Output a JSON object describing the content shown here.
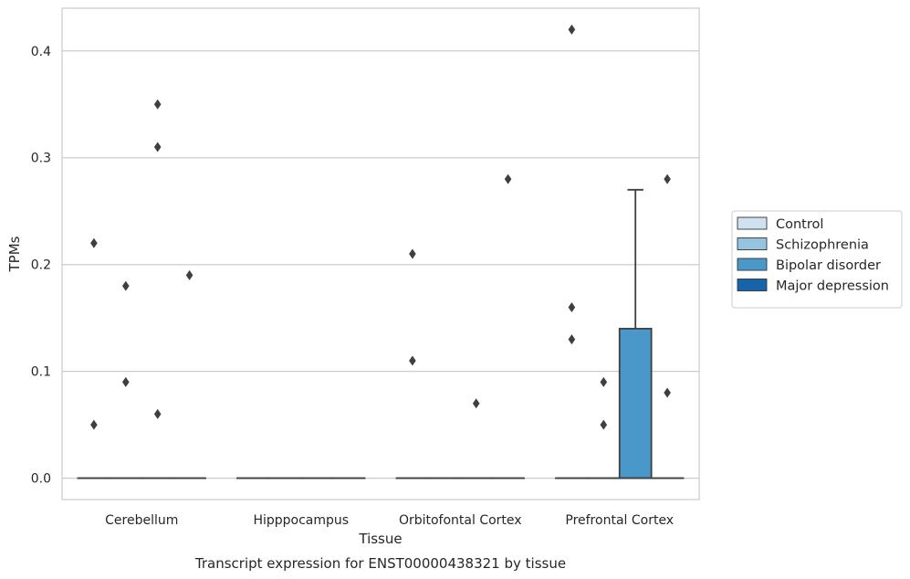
{
  "chart_data": {
    "type": "box",
    "title": "",
    "caption": "Transcript expression for ENST00000438321 by tissue",
    "xlabel": "Tissue",
    "ylabel": "TPMs",
    "ylim": [
      -0.02,
      0.44
    ],
    "yticks": [
      0.0,
      0.1,
      0.2,
      0.3,
      0.4
    ],
    "ytick_labels": [
      "0.0",
      "0.1",
      "0.2",
      "0.3",
      "0.4"
    ],
    "grid": true,
    "legend_position": "right",
    "categories": [
      "Cerebellum",
      "Hipppocampus",
      "Orbitofontal Cortex",
      "Prefrontal Cortex"
    ],
    "series": [
      {
        "name": "Control",
        "color": "#d0e1f2",
        "boxes": [
          {
            "category": "Cerebellum",
            "q1": 0.0,
            "median": 0.0,
            "q3": 0.0,
            "whisker_low": 0.0,
            "whisker_high": 0.0,
            "outliers": [
              0.05,
              0.22
            ]
          },
          {
            "category": "Hipppocampus",
            "q1": 0.0,
            "median": 0.0,
            "q3": 0.0,
            "whisker_low": 0.0,
            "whisker_high": 0.0,
            "outliers": []
          },
          {
            "category": "Orbitofontal Cortex",
            "q1": 0.0,
            "median": 0.0,
            "q3": 0.0,
            "whisker_low": 0.0,
            "whisker_high": 0.0,
            "outliers": [
              0.21,
              0.11
            ]
          },
          {
            "category": "Prefrontal Cortex",
            "q1": 0.0,
            "median": 0.0,
            "q3": 0.0,
            "whisker_low": 0.0,
            "whisker_high": 0.0,
            "outliers": [
              0.42,
              0.16,
              0.13
            ]
          }
        ]
      },
      {
        "name": "Schizophrenia",
        "color": "#94c4df",
        "boxes": [
          {
            "category": "Cerebellum",
            "q1": 0.0,
            "median": 0.0,
            "q3": 0.0,
            "whisker_low": 0.0,
            "whisker_high": 0.0,
            "outliers": [
              0.18,
              0.09
            ]
          },
          {
            "category": "Hipppocampus",
            "q1": 0.0,
            "median": 0.0,
            "q3": 0.0,
            "whisker_low": 0.0,
            "whisker_high": 0.0,
            "outliers": []
          },
          {
            "category": "Orbitofontal Cortex",
            "q1": 0.0,
            "median": 0.0,
            "q3": 0.0,
            "whisker_low": 0.0,
            "whisker_high": 0.0,
            "outliers": []
          },
          {
            "category": "Prefrontal Cortex",
            "q1": 0.0,
            "median": 0.0,
            "q3": 0.0,
            "whisker_low": 0.0,
            "whisker_high": 0.0,
            "outliers": [
              0.09,
              0.05
            ]
          }
        ]
      },
      {
        "name": "Bipolar disorder",
        "color": "#4a98c9",
        "boxes": [
          {
            "category": "Cerebellum",
            "q1": 0.0,
            "median": 0.0,
            "q3": 0.0,
            "whisker_low": 0.0,
            "whisker_high": 0.0,
            "outliers": [
              0.35,
              0.31,
              0.06
            ]
          },
          {
            "category": "Hipppocampus",
            "q1": 0.0,
            "median": 0.0,
            "q3": 0.0,
            "whisker_low": 0.0,
            "whisker_high": 0.0,
            "outliers": []
          },
          {
            "category": "Orbitofontal Cortex",
            "q1": 0.0,
            "median": 0.0,
            "q3": 0.0,
            "whisker_low": 0.0,
            "whisker_high": 0.0,
            "outliers": [
              0.07
            ]
          },
          {
            "category": "Prefrontal Cortex",
            "q1": 0.0,
            "median": 0.0,
            "q3": 0.14,
            "whisker_low": 0.0,
            "whisker_high": 0.27,
            "outliers": []
          }
        ]
      },
      {
        "name": "Major depression",
        "color": "#1764ab",
        "boxes": [
          {
            "category": "Cerebellum",
            "q1": 0.0,
            "median": 0.0,
            "q3": 0.0,
            "whisker_low": 0.0,
            "whisker_high": 0.0,
            "outliers": [
              0.19
            ]
          },
          {
            "category": "Hipppocampus",
            "q1": 0.0,
            "median": 0.0,
            "q3": 0.0,
            "whisker_low": 0.0,
            "whisker_high": 0.0,
            "outliers": []
          },
          {
            "category": "Orbitofontal Cortex",
            "q1": 0.0,
            "median": 0.0,
            "q3": 0.0,
            "whisker_low": 0.0,
            "whisker_high": 0.0,
            "outliers": [
              0.28
            ]
          },
          {
            "category": "Prefrontal Cortex",
            "q1": 0.0,
            "median": 0.0,
            "q3": 0.0,
            "whisker_low": 0.0,
            "whisker_high": 0.0,
            "outliers": [
              0.28,
              0.08
            ]
          }
        ]
      }
    ]
  }
}
